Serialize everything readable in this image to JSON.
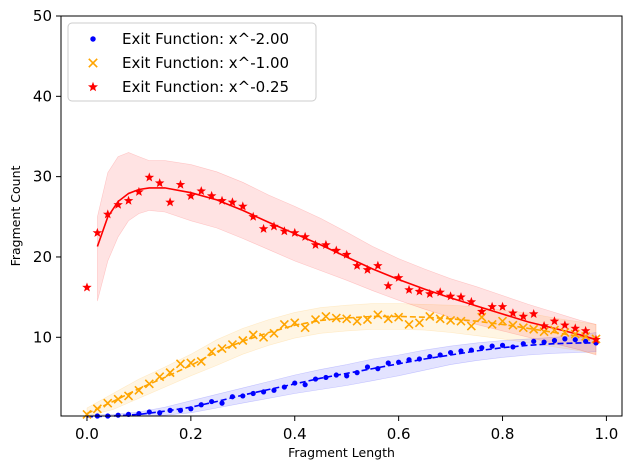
{
  "chart_data": {
    "type": "scatter",
    "xlabel": "Fragment Length",
    "ylabel": "Fragment Count",
    "xlim": [
      -0.05,
      1.03
    ],
    "ylim": [
      0.2,
      50
    ],
    "x_ticks": [
      0.0,
      0.2,
      0.4,
      0.6,
      0.8,
      1.0
    ],
    "x_tick_labels": [
      "0.0",
      "0.2",
      "0.4",
      "0.6",
      "0.8",
      "1.0"
    ],
    "y_ticks": [
      10,
      20,
      30,
      40,
      50
    ],
    "y_tick_labels": [
      "10",
      "20",
      "30",
      "40",
      "50"
    ],
    "grid": false,
    "legend_position": "top-left",
    "series": [
      {
        "name": "Exit Function: x^-2.00",
        "color": "#0000ff",
        "marker": "dot",
        "fit_style": "dashed",
        "x": [
          0.0,
          0.02,
          0.04,
          0.06,
          0.08,
          0.1,
          0.12,
          0.14,
          0.16,
          0.18,
          0.2,
          0.22,
          0.24,
          0.26,
          0.28,
          0.3,
          0.32,
          0.34,
          0.36,
          0.38,
          0.4,
          0.42,
          0.44,
          0.46,
          0.48,
          0.5,
          0.52,
          0.54,
          0.56,
          0.58,
          0.6,
          0.62,
          0.64,
          0.66,
          0.68,
          0.7,
          0.72,
          0.74,
          0.76,
          0.78,
          0.8,
          0.82,
          0.84,
          0.86,
          0.88,
          0.9,
          0.92,
          0.94,
          0.96,
          0.98
        ],
        "y": [
          0.1,
          0.2,
          0.2,
          0.3,
          0.4,
          0.5,
          0.7,
          0.6,
          0.9,
          0.9,
          1.1,
          1.6,
          2.0,
          1.8,
          2.6,
          2.7,
          3.0,
          3.2,
          3.4,
          3.8,
          4.3,
          4.1,
          4.8,
          5.0,
          5.3,
          5.2,
          5.6,
          6.3,
          6.1,
          6.8,
          6.9,
          7.2,
          7.3,
          7.6,
          7.8,
          8.1,
          8.3,
          8.4,
          8.7,
          8.9,
          9.0,
          8.8,
          9.2,
          9.5,
          9.4,
          9.6,
          9.8,
          9.7,
          9.5,
          9.3
        ],
        "fit_x": [
          0.0,
          0.05,
          0.1,
          0.15,
          0.2,
          0.25,
          0.3,
          0.35,
          0.4,
          0.45,
          0.5,
          0.55,
          0.6,
          0.65,
          0.7,
          0.75,
          0.8,
          0.85,
          0.9,
          0.95,
          0.98
        ],
        "fit_y": [
          0.1,
          0.2,
          0.4,
          0.8,
          1.3,
          2.0,
          2.8,
          3.5,
          4.2,
          4.9,
          5.5,
          6.1,
          6.7,
          7.3,
          7.8,
          8.3,
          8.7,
          9.0,
          9.2,
          9.3,
          9.3
        ],
        "band_lo": [
          0.0,
          0.1,
          0.2,
          0.3,
          0.6,
          1.2,
          1.8,
          2.4,
          3.0,
          3.5,
          4.0,
          4.6,
          5.2,
          5.9,
          6.6,
          7.1,
          7.5,
          7.8,
          8.0,
          8.1,
          8.2
        ],
        "band_hi": [
          0.3,
          0.4,
          0.7,
          1.3,
          2.1,
          2.9,
          3.7,
          4.5,
          5.3,
          6.0,
          6.6,
          7.3,
          7.8,
          8.4,
          8.9,
          9.3,
          9.6,
          9.8,
          10.0,
          10.3,
          10.6
        ]
      },
      {
        "name": "Exit Function: x^-1.00",
        "color": "#ffa500",
        "marker": "x",
        "fit_style": "dashed",
        "x": [
          0.0,
          0.02,
          0.04,
          0.06,
          0.08,
          0.1,
          0.12,
          0.14,
          0.16,
          0.18,
          0.2,
          0.22,
          0.24,
          0.26,
          0.28,
          0.3,
          0.32,
          0.34,
          0.36,
          0.38,
          0.4,
          0.42,
          0.44,
          0.46,
          0.48,
          0.5,
          0.52,
          0.54,
          0.56,
          0.58,
          0.6,
          0.62,
          0.64,
          0.66,
          0.68,
          0.7,
          0.72,
          0.74,
          0.76,
          0.78,
          0.8,
          0.82,
          0.84,
          0.86,
          0.88,
          0.9,
          0.92,
          0.94,
          0.96,
          0.98
        ],
        "y": [
          0.4,
          1.1,
          1.8,
          2.3,
          2.7,
          3.4,
          4.2,
          5.1,
          5.6,
          6.7,
          6.8,
          7.0,
          8.2,
          8.6,
          9.1,
          9.6,
          10.3,
          10.0,
          10.5,
          11.6,
          11.8,
          11.2,
          12.2,
          12.6,
          12.4,
          12.3,
          12.0,
          12.2,
          12.8,
          12.3,
          12.5,
          11.6,
          11.8,
          12.6,
          12.3,
          12.1,
          12.0,
          11.4,
          12.5,
          11.6,
          12.0,
          11.5,
          11.2,
          11.0,
          10.7,
          10.9,
          10.6,
          10.4,
          10.1,
          9.8
        ],
        "fit_x": [
          0.0,
          0.05,
          0.1,
          0.15,
          0.2,
          0.25,
          0.3,
          0.35,
          0.4,
          0.45,
          0.5,
          0.55,
          0.6,
          0.65,
          0.7,
          0.75,
          0.8,
          0.85,
          0.9,
          0.95,
          0.98
        ],
        "fit_y": [
          0.5,
          2.0,
          3.6,
          5.0,
          6.5,
          8.2,
          9.5,
          10.6,
          11.5,
          12.1,
          12.4,
          12.6,
          12.6,
          12.5,
          12.3,
          12.0,
          11.6,
          11.1,
          10.6,
          10.1,
          9.8
        ],
        "band_lo": [
          0.0,
          1.0,
          2.4,
          3.8,
          5.2,
          6.5,
          7.9,
          9.0,
          9.9,
          10.5,
          10.8,
          11.0,
          11.0,
          10.9,
          10.6,
          10.2,
          9.8,
          9.3,
          8.8,
          8.3,
          7.9
        ],
        "band_hi": [
          1.2,
          3.0,
          4.8,
          6.3,
          7.9,
          9.7,
          11.1,
          12.2,
          13.1,
          13.7,
          14.0,
          14.2,
          14.2,
          14.1,
          14.0,
          13.8,
          13.4,
          13.0,
          12.4,
          11.9,
          11.6
        ]
      },
      {
        "name": "Exit Function: x^-0.25",
        "color": "#ff0000",
        "marker": "star",
        "fit_style": "solid",
        "x": [
          0.0,
          0.02,
          0.04,
          0.06,
          0.08,
          0.1,
          0.12,
          0.14,
          0.16,
          0.18,
          0.2,
          0.22,
          0.24,
          0.26,
          0.28,
          0.3,
          0.32,
          0.34,
          0.36,
          0.38,
          0.4,
          0.42,
          0.44,
          0.46,
          0.48,
          0.5,
          0.52,
          0.54,
          0.56,
          0.58,
          0.6,
          0.62,
          0.64,
          0.66,
          0.68,
          0.7,
          0.72,
          0.74,
          0.76,
          0.78,
          0.8,
          0.82,
          0.84,
          0.86,
          0.88,
          0.9,
          0.92,
          0.94,
          0.96,
          0.98
        ],
        "y": [
          16.2,
          23.0,
          25.3,
          26.5,
          27.0,
          28.1,
          29.9,
          29.2,
          26.8,
          29.0,
          27.6,
          28.2,
          27.6,
          27.0,
          26.8,
          26.3,
          25.0,
          23.5,
          23.8,
          23.2,
          23.0,
          22.5,
          21.5,
          21.5,
          20.8,
          20.3,
          18.9,
          18.4,
          18.9,
          16.4,
          17.4,
          15.9,
          15.7,
          15.4,
          15.6,
          15.1,
          15.0,
          14.4,
          13.2,
          13.8,
          13.8,
          13.0,
          12.6,
          12.9,
          11.4,
          12.0,
          11.5,
          11.1,
          10.8,
          9.7
        ],
        "fit_x": [
          0.02,
          0.04,
          0.06,
          0.08,
          0.1,
          0.12,
          0.15,
          0.2,
          0.25,
          0.3,
          0.35,
          0.4,
          0.45,
          0.5,
          0.55,
          0.6,
          0.65,
          0.7,
          0.75,
          0.8,
          0.85,
          0.9,
          0.95,
          0.98
        ],
        "fit_y": [
          21.3,
          25.0,
          26.9,
          27.9,
          28.4,
          28.6,
          28.6,
          28.0,
          27.1,
          25.8,
          24.3,
          22.9,
          21.5,
          20.0,
          18.5,
          17.2,
          16.0,
          14.9,
          13.9,
          12.9,
          11.9,
          11.1,
          10.3,
          9.7
        ],
        "band_lo": [
          14.5,
          19.5,
          22.5,
          24.5,
          25.4,
          25.8,
          25.6,
          24.5,
          23.6,
          22.3,
          20.9,
          19.5,
          18.3,
          17.1,
          15.8,
          14.6,
          13.5,
          12.5,
          11.6,
          10.8,
          10.0,
          9.2,
          8.4,
          7.8
        ],
        "band_hi": [
          25.0,
          30.5,
          32.5,
          33.0,
          32.5,
          32.0,
          32.0,
          31.5,
          30.6,
          29.3,
          27.7,
          26.3,
          24.8,
          23.1,
          21.3,
          19.8,
          18.5,
          17.3,
          16.3,
          15.2,
          14.1,
          13.1,
          12.1,
          11.6
        ]
      }
    ]
  }
}
